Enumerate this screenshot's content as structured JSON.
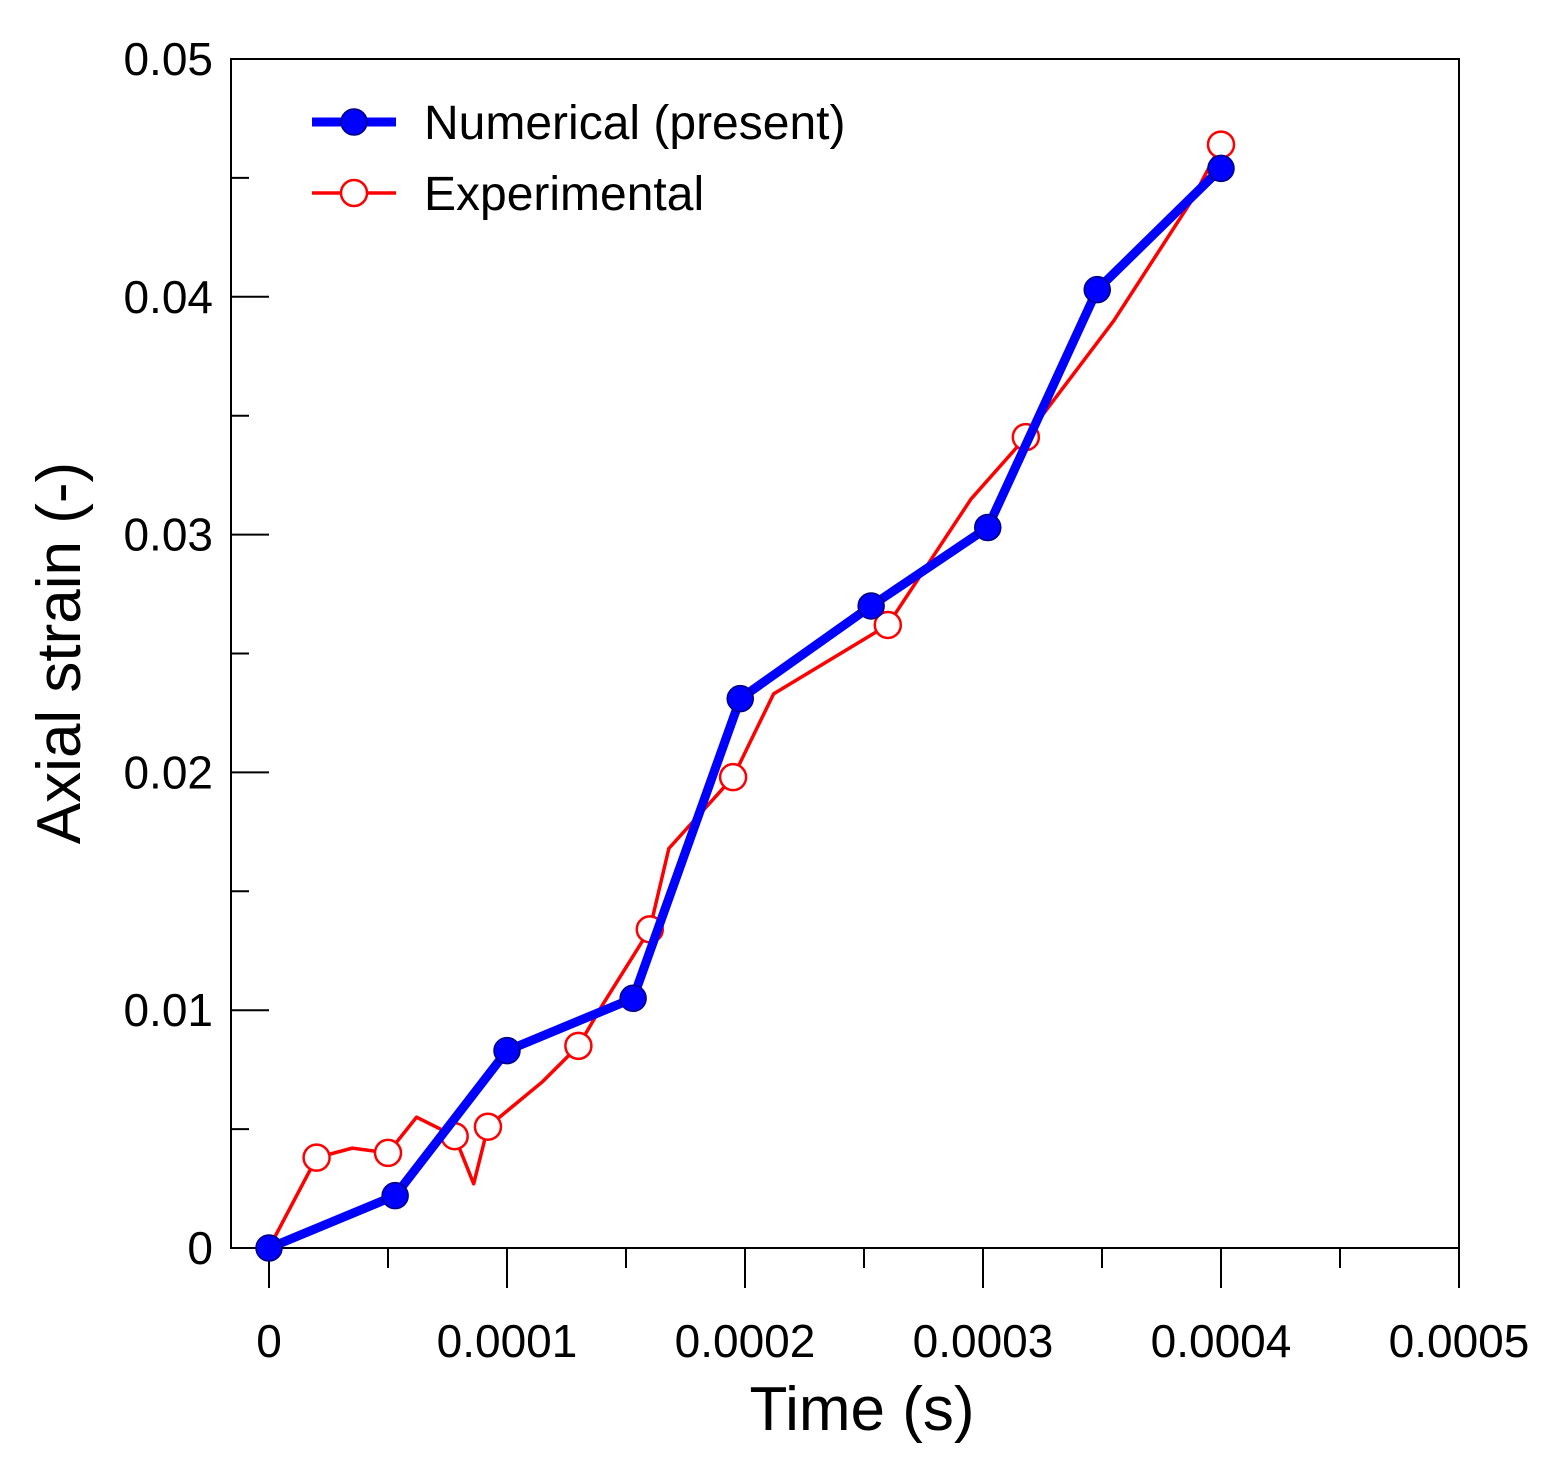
{
  "chart_data": {
    "type": "line",
    "title": "",
    "xlabel": "Time  (s)",
    "ylabel": "Axial strain  (-)",
    "xlim": [
      0,
      0.0005
    ],
    "ylim": [
      0,
      0.05
    ],
    "xticks": [
      0,
      0.0001,
      0.0002,
      0.0003,
      0.0004,
      0.0005
    ],
    "xtick_labels": [
      "0",
      "0.0001",
      "0.0002",
      "0.0003",
      "0.0004",
      "0.0005"
    ],
    "yticks": [
      0,
      0.01,
      0.02,
      0.03,
      0.04,
      0.05
    ],
    "ytick_labels": [
      "0",
      "0.01",
      "0.02",
      "0.03",
      "0.04",
      "0.05"
    ],
    "x_minor_step": 5e-05,
    "y_minor_step": 0.005,
    "grid": false,
    "legend_position": "top-left",
    "series": [
      {
        "name": "Numerical (present)",
        "color": "#0000ff",
        "marker": "filled-circle",
        "x": [
          0,
          5.3e-05,
          0.0001,
          0.000153,
          0.000198,
          0.000253,
          0.000302,
          0.000348,
          0.0004
        ],
        "y": [
          0,
          0.0022,
          0.0083,
          0.0105,
          0.0231,
          0.027,
          0.0303,
          0.0403,
          0.0454
        ]
      },
      {
        "name": "Experimental",
        "color": "#ff0000",
        "marker": "open-circle",
        "x": [
          0,
          2e-05,
          3.5e-05,
          5e-05,
          6.2e-05,
          7.8e-05,
          8.6e-05,
          9.2e-05,
          0.000115,
          0.00013,
          0.00014,
          0.00016,
          0.000168,
          0.000195,
          0.000212,
          0.00026,
          0.000295,
          0.000318,
          0.000355,
          0.000388,
          0.0004
        ],
        "y": [
          0,
          0.0038,
          0.0042,
          0.004,
          0.0055,
          0.0047,
          0.0027,
          0.0051,
          0.007,
          0.0085,
          0.0102,
          0.0134,
          0.0168,
          0.0198,
          0.0233,
          0.0262,
          0.0315,
          0.0341,
          0.039,
          0.0441,
          0.0464
        ],
        "marker_indices": [
          1,
          3,
          5,
          7,
          9,
          11,
          13,
          15,
          17,
          20
        ]
      }
    ]
  }
}
